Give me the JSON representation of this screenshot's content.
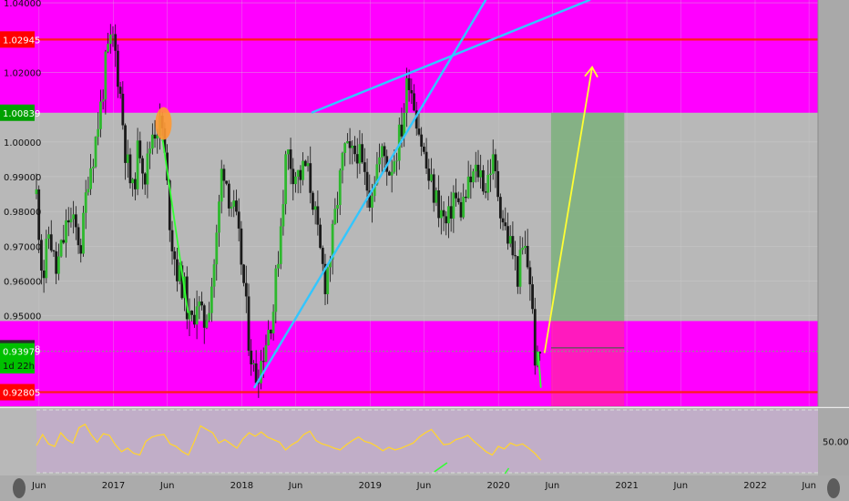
{
  "chart_data": {
    "type": "candlestick",
    "y_axis": {
      "ticks": [
        "1.04000",
        "1.02000",
        "1.00000",
        "0.99000",
        "0.98000",
        "0.97000",
        "0.96000",
        "0.95000"
      ],
      "tick_values": [
        1.04,
        1.02,
        1.0,
        0.99,
        0.98,
        0.97,
        0.96,
        0.95
      ],
      "ylim": [
        0.924,
        1.0408
      ]
    },
    "price_labels": [
      {
        "text": "1.02945",
        "value": 1.02945,
        "bg": "#ff0000",
        "fg": "#ffffff"
      },
      {
        "text": "1.00839",
        "value": 1.00839,
        "bg": "#00a000",
        "fg": "#ffffff"
      },
      {
        "text": "0.94068",
        "value": 0.94068,
        "bg": "#2b2b2b",
        "fg": "#ffffff"
      },
      {
        "text": "0.93979",
        "value": 0.93979,
        "bg": "#00c000",
        "fg": "#ffffff"
      },
      {
        "text": "1d 22h",
        "value": 0.93579,
        "bg": "#00c000",
        "fg": "#111111"
      },
      {
        "text": "0.92805",
        "value": 0.92805,
        "bg": "#ff0000",
        "fg": "#ffffff"
      }
    ],
    "zones": [
      {
        "from": 1.00839,
        "to": 1.0408,
        "color": "#ff00ff"
      },
      {
        "from": 0.924,
        "to": 0.9485,
        "color": "#ff00ff"
      }
    ],
    "horizontal_lines": [
      {
        "value": 1.02945,
        "color": "#ff1a1a"
      },
      {
        "value": 0.92805,
        "color": "#ff1a1a"
      }
    ],
    "time_axis": {
      "labels": [
        "Jun",
        "2017",
        "Jun",
        "2018",
        "Jun",
        "2019",
        "Jun",
        "2020",
        "Jun",
        "2021",
        "Jun",
        "2022",
        "Jun"
      ],
      "years": [
        2016.42,
        2017.0,
        2017.42,
        2018.0,
        2018.42,
        2019.0,
        2019.42,
        2020.0,
        2020.42,
        2021.0,
        2021.42,
        2022.0,
        2022.42
      ],
      "xlim": [
        2016.4,
        2022.49
      ]
    },
    "price_path": [
      [
        2016.4,
        0.985
      ],
      [
        2016.45,
        0.96
      ],
      [
        2016.5,
        0.975
      ],
      [
        2016.55,
        0.962
      ],
      [
        2016.6,
        0.97
      ],
      [
        2016.65,
        0.978
      ],
      [
        2016.7,
        0.975
      ],
      [
        2016.75,
        0.97
      ],
      [
        2016.8,
        0.99
      ],
      [
        2016.85,
        0.998
      ],
      [
        2016.9,
        1.01
      ],
      [
        2016.95,
        1.025
      ],
      [
        2017.0,
        1.03
      ],
      [
        2017.05,
        1.015
      ],
      [
        2017.1,
        0.995
      ],
      [
        2017.15,
        0.985
      ],
      [
        2017.2,
        1.0
      ],
      [
        2017.25,
        0.99
      ],
      [
        2017.3,
        1.003
      ],
      [
        2017.35,
        1.005
      ],
      [
        2017.38,
        1.004
      ],
      [
        2017.45,
        0.973
      ],
      [
        2017.5,
        0.962
      ],
      [
        2017.55,
        0.958
      ],
      [
        2017.6,
        0.946
      ],
      [
        2017.65,
        0.955
      ],
      [
        2017.7,
        0.947
      ],
      [
        2017.75,
        0.955
      ],
      [
        2017.8,
        0.97
      ],
      [
        2017.85,
        0.995
      ],
      [
        2017.9,
        0.985
      ],
      [
        2017.95,
        0.978
      ],
      [
        2018.0,
        0.965
      ],
      [
        2018.05,
        0.945
      ],
      [
        2018.1,
        0.932
      ],
      [
        2018.15,
        0.937
      ],
      [
        2018.2,
        0.945
      ],
      [
        2018.25,
        0.953
      ],
      [
        2018.3,
        0.975
      ],
      [
        2018.35,
        0.998
      ],
      [
        2018.4,
        0.992
      ],
      [
        2018.45,
        0.99
      ],
      [
        2018.5,
        0.993
      ],
      [
        2018.55,
        0.985
      ],
      [
        2018.6,
        0.97
      ],
      [
        2018.65,
        0.96
      ],
      [
        2018.7,
        0.97
      ],
      [
        2018.75,
        0.985
      ],
      [
        2018.8,
        0.998
      ],
      [
        2018.85,
        0.995
      ],
      [
        2018.9,
        0.998
      ],
      [
        2018.95,
        0.99
      ],
      [
        2019.0,
        0.985
      ],
      [
        2019.05,
        0.993
      ],
      [
        2019.1,
        0.997
      ],
      [
        2019.15,
        0.992
      ],
      [
        2019.2,
        0.997
      ],
      [
        2019.25,
        1.005
      ],
      [
        2019.3,
        1.02
      ],
      [
        2019.35,
        1.01
      ],
      [
        2019.4,
        1.0
      ],
      [
        2019.45,
        0.99
      ],
      [
        2019.5,
        0.985
      ],
      [
        2019.55,
        0.98
      ],
      [
        2019.6,
        0.975
      ],
      [
        2019.65,
        0.985
      ],
      [
        2019.7,
        0.98
      ],
      [
        2019.75,
        0.985
      ],
      [
        2019.8,
        0.99
      ],
      [
        2019.85,
        0.992
      ],
      [
        2019.9,
        0.987
      ],
      [
        2019.95,
        0.995
      ],
      [
        2020.0,
        0.985
      ],
      [
        2020.05,
        0.975
      ],
      [
        2020.1,
        0.97
      ],
      [
        2020.15,
        0.962
      ],
      [
        2020.2,
        0.97
      ],
      [
        2020.25,
        0.96
      ],
      [
        2020.28,
        0.94
      ],
      [
        2020.3,
        0.935
      ],
      [
        2020.33,
        0.94
      ]
    ],
    "annotations": {
      "green_box": {
        "x0": 2020.41,
        "x1": 2020.98,
        "y0": 0.9485,
        "y1": 1.00839,
        "color": "#7fb07f"
      },
      "pink_box": {
        "x0": 2020.41,
        "x1": 2020.98,
        "y0": 0.924,
        "y1": 0.9485,
        "color": "#ff1fb3"
      },
      "target_line": {
        "x0": 2020.41,
        "x1": 2020.98,
        "y": 0.9408,
        "color": "#555555"
      },
      "arrow": {
        "from": [
          2020.36,
          0.9395
        ],
        "to": [
          2020.73,
          1.0215
        ],
        "color": "#ffff33"
      },
      "channel_upper": {
        "from": [
          2018.55,
          1.0085
        ],
        "to": [
          2020.71,
          1.0408
        ],
        "color": "#33c6ff"
      },
      "channel_lower": {
        "from": [
          2018.1,
          0.9295
        ],
        "to": [
          2019.9,
          1.0408
        ],
        "color": "#33c6ff"
      },
      "green_line_1": {
        "from": [
          2017.38,
          1.0015
        ],
        "to": [
          2017.58,
          0.951
        ],
        "color": "#33ff33"
      },
      "green_line_2": {
        "from": [
          2020.31,
          0.9395
        ],
        "to": [
          2020.33,
          0.9295
        ],
        "color": "#33ff33"
      },
      "marker": {
        "x": 2017.39,
        "y": 1.0053,
        "color": "#ff9933"
      }
    },
    "oscillator": {
      "level_label": "50.00",
      "level": 50,
      "ylim": [
        10,
        90
      ],
      "color": "#ffd333",
      "values": [
        45,
        58,
        47,
        44,
        60,
        52,
        48,
        66,
        70,
        58,
        49,
        59,
        57,
        46,
        38,
        42,
        36,
        34,
        50,
        55,
        57,
        58,
        47,
        44,
        38,
        34,
        50,
        68,
        64,
        60,
        48,
        52,
        47,
        42,
        53,
        60,
        56,
        61,
        55,
        52,
        49,
        40,
        46,
        50,
        58,
        62,
        51,
        47,
        45,
        42,
        40,
        46,
        51,
        55,
        50,
        48,
        44,
        39,
        43,
        40,
        42,
        45,
        48,
        55,
        60,
        64,
        55,
        46,
        47,
        52,
        54,
        57,
        50,
        44,
        38,
        34,
        44,
        41,
        48,
        45,
        47,
        42,
        36,
        28
      ]
    }
  }
}
